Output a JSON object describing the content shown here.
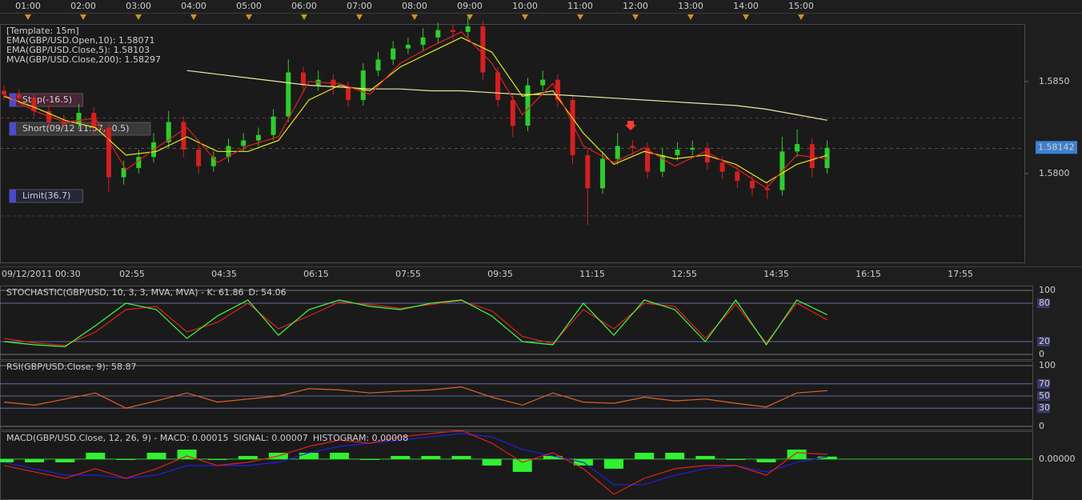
{
  "top_axis": {
    "labels": [
      "01:00",
      "02:00",
      "03:00",
      "04:00",
      "05:00",
      "06:00",
      "07:00",
      "08:00",
      "09:00",
      "10:00",
      "11:00",
      "12:00",
      "13:00",
      "14:00",
      "15:00"
    ]
  },
  "main": {
    "legend": [
      "[Template: 15m]",
      "EMA(GBP/USD.Open,10): 1.58071",
      "EMA(GBP/USD.Close,5): 1.58103",
      "MVA(GBP/USD.Close,200): 1.58297"
    ],
    "ylim": [
      1.57517,
      1.58813
    ],
    "yticks": [
      {
        "value": 1.585,
        "label": "1.5850"
      },
      {
        "value": 1.58,
        "label": "1.5800"
      }
    ],
    "current_price": 1.58142,
    "orders": [
      {
        "label": "Stop(-16.5)",
        "level": 1.58302
      },
      {
        "label": "Short(09/12 11:57, -0.5)",
        "level": 1.58137
      },
      {
        "label": "Limit(36.7)",
        "level": 1.5777
      }
    ],
    "candles": [
      [
        1.5845,
        1.5848,
        1.584,
        1.5843
      ],
      [
        1.5843,
        1.5846,
        1.5838,
        1.5841
      ],
      [
        1.5841,
        1.5843,
        1.5831,
        1.5834
      ],
      [
        1.5834,
        1.5837,
        1.5825,
        1.5828
      ],
      [
        1.5828,
        1.5832,
        1.5824,
        1.5827
      ],
      [
        1.5827,
        1.5838,
        1.5824,
        1.5833
      ],
      [
        1.5833,
        1.5836,
        1.5821,
        1.5825
      ],
      [
        1.5825,
        1.5828,
        1.579,
        1.5798
      ],
      [
        1.5798,
        1.5807,
        1.5794,
        1.5803
      ],
      [
        1.5803,
        1.5813,
        1.58,
        1.5809
      ],
      [
        1.5809,
        1.5822,
        1.5806,
        1.5817
      ],
      [
        1.5817,
        1.5834,
        1.5814,
        1.5828
      ],
      [
        1.5828,
        1.5831,
        1.5809,
        1.5813
      ],
      [
        1.5813,
        1.5816,
        1.58,
        1.5804
      ],
      [
        1.5804,
        1.5812,
        1.5801,
        1.5809
      ],
      [
        1.5809,
        1.5819,
        1.5806,
        1.5815
      ],
      [
        1.5815,
        1.5822,
        1.5812,
        1.5818
      ],
      [
        1.5818,
        1.5825,
        1.5815,
        1.5821
      ],
      [
        1.5821,
        1.5835,
        1.5818,
        1.5831
      ],
      [
        1.5831,
        1.5862,
        1.5828,
        1.5855
      ],
      [
        1.5855,
        1.5858,
        1.5844,
        1.5848
      ],
      [
        1.5848,
        1.5856,
        1.5845,
        1.5851
      ],
      [
        1.5851,
        1.5854,
        1.5843,
        1.5847
      ],
      [
        1.5847,
        1.585,
        1.5836,
        1.584
      ],
      [
        1.584,
        1.586,
        1.5837,
        1.5856
      ],
      [
        1.5856,
        1.5866,
        1.5853,
        1.5862
      ],
      [
        1.5862,
        1.5872,
        1.5859,
        1.5868
      ],
      [
        1.5868,
        1.5874,
        1.5865,
        1.587
      ],
      [
        1.587,
        1.5879,
        1.5867,
        1.5874
      ],
      [
        1.5874,
        1.5882,
        1.5871,
        1.5878
      ],
      [
        1.5878,
        1.5881,
        1.5873,
        1.5877
      ],
      [
        1.5877,
        1.5885,
        1.5874,
        1.588
      ],
      [
        1.588,
        1.5883,
        1.5851,
        1.5855
      ],
      [
        1.5855,
        1.5858,
        1.5836,
        1.584
      ],
      [
        1.584,
        1.5843,
        1.582,
        1.5826
      ],
      [
        1.5826,
        1.5852,
        1.5823,
        1.5848
      ],
      [
        1.5848,
        1.5856,
        1.5845,
        1.5851
      ],
      [
        1.5851,
        1.5854,
        1.5836,
        1.584
      ],
      [
        1.584,
        1.5843,
        1.5805,
        1.581
      ],
      [
        1.581,
        1.5813,
        1.5772,
        1.5792
      ],
      [
        1.5792,
        1.5812,
        1.5789,
        1.5808
      ],
      [
        1.5808,
        1.5822,
        1.5805,
        1.5815
      ],
      [
        1.5815,
        1.5818,
        1.581,
        1.5814
      ],
      [
        1.5814,
        1.5817,
        1.5797,
        1.5801
      ],
      [
        1.5801,
        1.5814,
        1.5798,
        1.581
      ],
      [
        1.581,
        1.5817,
        1.5807,
        1.5813
      ],
      [
        1.5813,
        1.5818,
        1.581,
        1.5814
      ],
      [
        1.5814,
        1.5817,
        1.5802,
        1.5806
      ],
      [
        1.5806,
        1.5809,
        1.5797,
        1.5801
      ],
      [
        1.5801,
        1.5804,
        1.5792,
        1.5796
      ],
      [
        1.5796,
        1.5799,
        1.5788,
        1.5792
      ],
      [
        1.5792,
        1.5795,
        1.5786,
        1.5791
      ],
      [
        1.5791,
        1.582,
        1.5788,
        1.5812
      ],
      [
        1.5812,
        1.5824,
        1.5809,
        1.5816
      ],
      [
        1.5816,
        1.5819,
        1.5798,
        1.5803
      ],
      [
        1.5803,
        1.5818,
        1.58,
        1.5814
      ]
    ],
    "ema10": [
      1.5842,
      1.5836,
      1.5829,
      1.5825,
      1.581,
      1.5812,
      1.582,
      1.5812,
      1.5812,
      1.5818,
      1.584,
      1.5848,
      1.5845,
      1.5858,
      1.5866,
      1.5874,
      1.5866,
      1.5842,
      1.5845,
      1.5822,
      1.5805,
      1.5812,
      1.5808,
      1.581,
      1.5805,
      1.5795,
      1.5805,
      1.581
    ],
    "ema5": [
      1.5843,
      1.5834,
      1.5828,
      1.583,
      1.5802,
      1.5814,
      1.5825,
      1.5806,
      1.5815,
      1.582,
      1.585,
      1.5849,
      1.5843,
      1.586,
      1.5869,
      1.5877,
      1.586,
      1.5832,
      1.5849,
      1.5815,
      1.5806,
      1.5814,
      1.5804,
      1.5812,
      1.5803,
      1.5792,
      1.581,
      1.5808
    ],
    "mva200": [
      null,
      null,
      null,
      null,
      null,
      null,
      1.5856,
      1.5854,
      1.5852,
      1.585,
      1.5848,
      1.5847,
      1.5846,
      1.5846,
      1.5845,
      1.5845,
      1.5844,
      1.5843,
      1.5843,
      1.5842,
      1.5841,
      1.584,
      1.5839,
      1.5838,
      1.5837,
      1.5835,
      1.5832,
      1.5829
    ]
  },
  "bottom_axis": {
    "labels": [
      "09/12/2011 00:30",
      "02:55",
      "04:35",
      "06:15",
      "07:55",
      "09:35",
      "11:15",
      "12:55",
      "14:35",
      "16:15",
      "17:55"
    ]
  },
  "stochastic": {
    "label_k": "STOCHASTIC(GBP/USD, 10, 3, 3, MVA, MVA) -  K: 61.86",
    "label_d": "D: 54.06",
    "ylim": [
      0,
      100
    ],
    "yticks": [
      100,
      80,
      20,
      0
    ],
    "k": [
      20,
      15,
      12,
      45,
      80,
      70,
      25,
      60,
      85,
      30,
      70,
      85,
      75,
      70,
      80,
      85,
      60,
      20,
      15,
      80,
      30,
      85,
      70,
      20,
      85,
      15,
      85,
      61.86
    ],
    "d": [
      25,
      18,
      14,
      35,
      70,
      75,
      35,
      50,
      80,
      40,
      60,
      82,
      78,
      72,
      78,
      84,
      68,
      28,
      17,
      70,
      40,
      80,
      75,
      25,
      78,
      18,
      80,
      54.06
    ]
  },
  "rsi": {
    "label": "RSI(GBP/USD.Close, 9): 58.87",
    "ylim": [
      0,
      100
    ],
    "yticks": [
      100,
      70,
      50,
      30,
      0
    ],
    "values": [
      40,
      35,
      45,
      55,
      30,
      42,
      55,
      40,
      45,
      50,
      62,
      60,
      55,
      58,
      60,
      65,
      48,
      35,
      55,
      40,
      38,
      48,
      42,
      45,
      38,
      32,
      55,
      58.87
    ]
  },
  "macd": {
    "label_macd": "MACD(GBP/USD.Close, 12, 26, 9) -  MACD: 0.00015",
    "label_signal": "SIGNAL: 0.00007",
    "label_hist": "HISTOGRAM: 0.00008",
    "ylim": [
      -0.00128,
      0.00085
    ],
    "yticks": [
      {
        "value": 0,
        "label": "0.00000"
      }
    ],
    "macd": [
      -0.0002,
      -0.0004,
      -0.0006,
      -0.0003,
      -0.0006,
      -0.0003,
      0.0001,
      -0.0002,
      -0.0001,
      0.0001,
      0.0004,
      0.0006,
      0.0005,
      0.0007,
      0.0008,
      0.0009,
      0.0005,
      -0.0001,
      0.0002,
      -0.0003,
      -0.0011,
      -0.0006,
      -0.0003,
      -0.0002,
      -0.0002,
      -0.0005,
      0.0002,
      0.00015
    ],
    "signal": [
      -0.0001,
      -0.0003,
      -0.0005,
      -0.0005,
      -0.0006,
      -0.0005,
      -0.0002,
      -0.0002,
      -0.0002,
      -0.0001,
      0.0002,
      0.0004,
      0.0005,
      0.0006,
      0.0007,
      0.0008,
      0.0007,
      0.0003,
      0.0001,
      -0.0001,
      -0.0008,
      -0.0008,
      -0.0005,
      -0.0003,
      -0.0002,
      -0.0004,
      -0.0001,
      7e-05
    ],
    "histogram": [
      -0.0001,
      -0.0001,
      -0.0001,
      0.0002,
      0,
      0.0002,
      0.0003,
      0,
      0.0001,
      0.0002,
      0.0002,
      0.0002,
      0,
      0.0001,
      0.0001,
      0.0001,
      -0.0002,
      -0.0004,
      0.0001,
      -0.0002,
      -0.0003,
      0.0002,
      0.0002,
      0.0001,
      0,
      -0.0001,
      0.0003,
      8e-05
    ]
  }
}
